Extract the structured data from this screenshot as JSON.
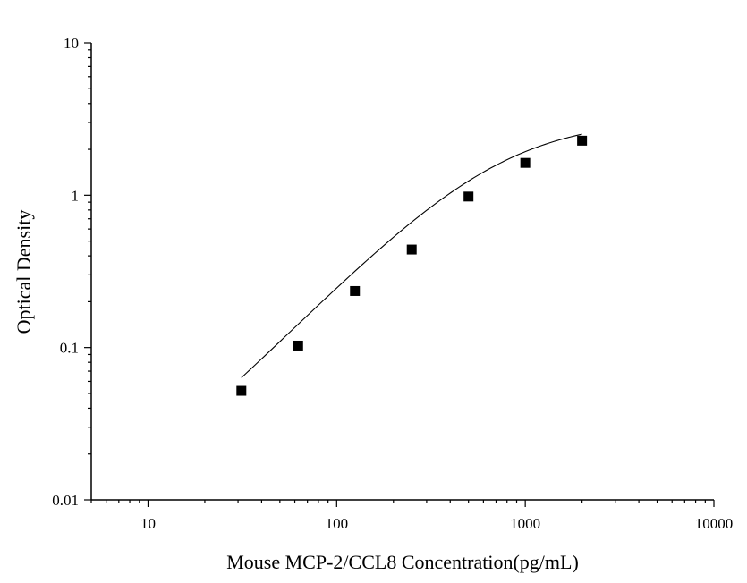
{
  "chart_data": {
    "type": "scatter",
    "title": "",
    "xlabel": "Mouse MCP-2/CCL8 Concentration(pg/mL)",
    "ylabel": "Optical Density",
    "xscale": "log",
    "yscale": "log",
    "xlim": [
      5,
      10000
    ],
    "ylim": [
      0.01,
      10
    ],
    "grid": false,
    "legend": "none",
    "marker": "square",
    "marker_color": "#000000",
    "line_color": "#000000",
    "xticks": [
      {
        "value": 10,
        "label": "10"
      },
      {
        "value": 100,
        "label": "100"
      },
      {
        "value": 1000,
        "label": "1000"
      },
      {
        "value": 10000,
        "label": "10000"
      }
    ],
    "yticks": [
      {
        "value": 0.01,
        "label": "0.01"
      },
      {
        "value": 0.1,
        "label": "0.1"
      },
      {
        "value": 1,
        "label": "1"
      },
      {
        "value": 10,
        "label": "10"
      }
    ],
    "series": [
      {
        "x": [
          31.25,
          62.5,
          125,
          250,
          500,
          1000,
          2000
        ],
        "y": [
          0.052,
          0.103,
          0.235,
          0.44,
          0.98,
          1.63,
          2.28
        ]
      }
    ],
    "fit_curve": {
      "type": "4PL",
      "bottom": 0.005,
      "top": 3.2,
      "ec50": 720,
      "hill": 1.27,
      "x_range": [
        31.25,
        2000
      ]
    }
  }
}
